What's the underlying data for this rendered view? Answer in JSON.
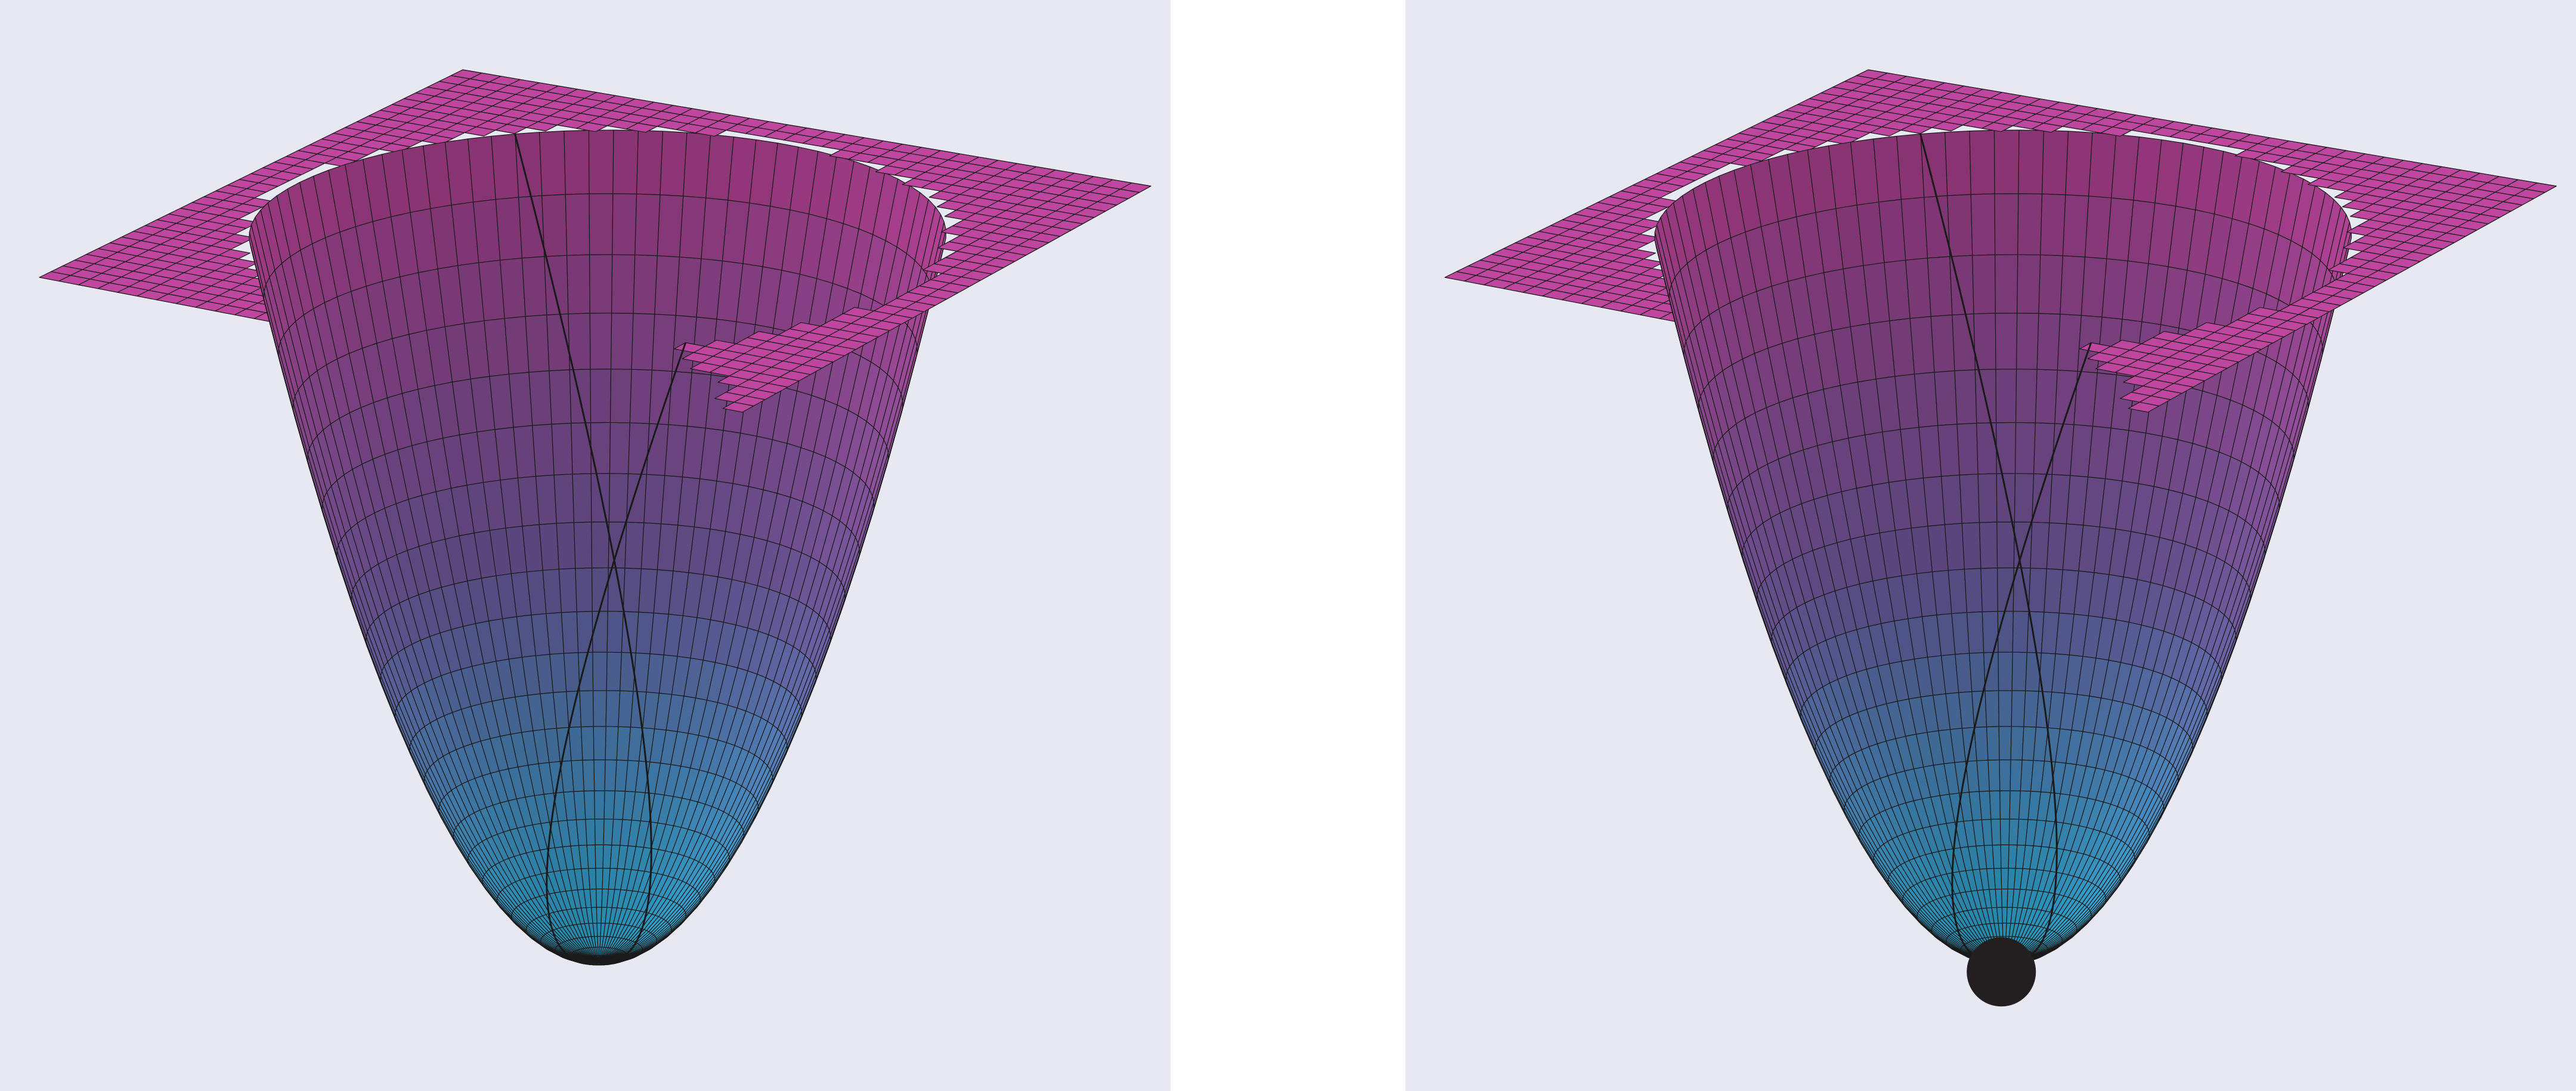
{
  "colors": {
    "panel_background": "#e8e8f2",
    "gap_background": "#ffffff",
    "surface_high": "#c2459e",
    "surface_mid": "#7a62ad",
    "surface_low": "#30c4f2",
    "mesh_line": "#1a1a1a",
    "ball": "#231f20"
  },
  "panels": [
    {
      "id": "left",
      "surface": "paraboloid-well",
      "ball_shown": false
    },
    {
      "id": "right",
      "surface": "paraboloid-well",
      "ball_shown": true
    }
  ]
}
